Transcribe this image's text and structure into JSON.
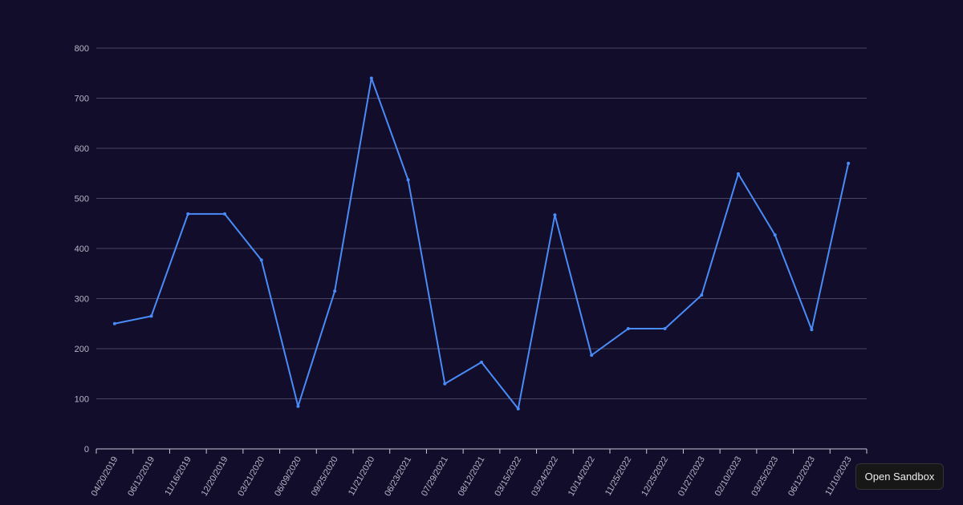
{
  "chart_data": {
    "type": "line",
    "title": "",
    "xlabel": "",
    "ylabel": "",
    "ylim": [
      0,
      800
    ],
    "yticks": [
      0,
      100,
      200,
      300,
      400,
      500,
      600,
      700,
      800
    ],
    "grid": true,
    "line_color": "#4a8cf7",
    "categories": [
      "04/20/2019",
      "06/12/2019",
      "11/16/2019",
      "12/20/2019",
      "03/21/2020",
      "06/09/2020",
      "09/25/2020",
      "11/21/2020",
      "06/23/2021",
      "07/29/2021",
      "08/12/2021",
      "03/15/2022",
      "03/24/2022",
      "10/14/2022",
      "11/25/2022",
      "12/25/2022",
      "01/27/2023",
      "02/10/2023",
      "03/25/2023",
      "06/12/2023",
      "11/10/2023"
    ],
    "values": [
      250,
      265,
      469,
      469,
      377,
      85,
      315,
      740,
      537,
      130,
      173,
      80,
      467,
      187,
      240,
      240,
      307,
      549,
      427,
      238,
      570
    ]
  },
  "sandbox_button": {
    "label": "Open Sandbox"
  }
}
